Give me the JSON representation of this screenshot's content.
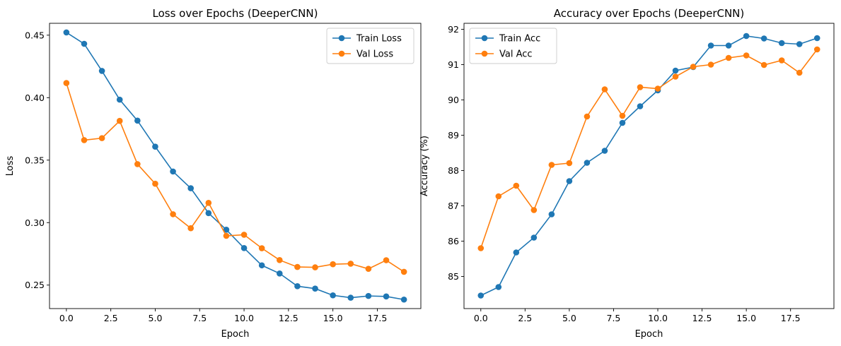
{
  "chart_data": [
    {
      "type": "line",
      "title": "Loss over Epochs (DeeperCNN)",
      "xlabel": "Epoch",
      "ylabel": "Loss",
      "xlim": [
        -0.95,
        19.95
      ],
      "ylim": [
        0.2312,
        0.4595
      ],
      "x_ticks": [
        0.0,
        2.5,
        5.0,
        7.5,
        10.0,
        12.5,
        15.0,
        17.5
      ],
      "x_tick_labels": [
        "0.0",
        "2.5",
        "5.0",
        "7.5",
        "10.0",
        "12.5",
        "15.0",
        "17.5"
      ],
      "y_ticks": [
        0.25,
        0.3,
        0.35,
        0.4,
        0.45
      ],
      "y_tick_labels": [
        "0.25",
        "0.30",
        "0.35",
        "0.40",
        "0.45"
      ],
      "grid": false,
      "legend": "top-right",
      "x": [
        0,
        1,
        2,
        3,
        4,
        5,
        6,
        7,
        8,
        9,
        10,
        11,
        12,
        13,
        14,
        15,
        16,
        17,
        18,
        19
      ],
      "series": [
        {
          "name": "Train Loss",
          "color": "#1f77b4",
          "values": [
            0.4522,
            0.4431,
            0.4214,
            0.3984,
            0.3816,
            0.3608,
            0.3409,
            0.3275,
            0.3076,
            0.2943,
            0.2796,
            0.2658,
            0.2593,
            0.2491,
            0.2472,
            0.2418,
            0.2399,
            0.2413,
            0.2409,
            0.2384
          ]
        },
        {
          "name": "Val Loss",
          "color": "#ff7f0e",
          "values": [
            0.4117,
            0.366,
            0.3676,
            0.3814,
            0.3468,
            0.3311,
            0.3067,
            0.2955,
            0.3158,
            0.2894,
            0.2903,
            0.2795,
            0.27,
            0.2645,
            0.2642,
            0.2667,
            0.2671,
            0.263,
            0.2699,
            0.2606
          ]
        }
      ]
    },
    {
      "type": "line",
      "title": "Accuracy over Epochs (DeeperCNN)",
      "xlabel": "Epoch",
      "ylabel": "Accuracy (%)",
      "xlim": [
        -0.95,
        19.95
      ],
      "ylim": [
        84.09,
        92.17
      ],
      "x_ticks": [
        0.0,
        2.5,
        5.0,
        7.5,
        10.0,
        12.5,
        15.0,
        17.5
      ],
      "x_tick_labels": [
        "0.0",
        "2.5",
        "5.0",
        "7.5",
        "10.0",
        "12.5",
        "15.0",
        "17.5"
      ],
      "y_ticks": [
        85,
        86,
        87,
        88,
        89,
        90,
        91,
        92
      ],
      "y_tick_labels": [
        "85",
        "86",
        "87",
        "88",
        "89",
        "90",
        "91",
        "92"
      ],
      "grid": false,
      "legend": "top-left",
      "x": [
        0,
        1,
        2,
        3,
        4,
        5,
        6,
        7,
        8,
        9,
        10,
        11,
        12,
        13,
        14,
        15,
        16,
        17,
        18,
        19
      ],
      "series": [
        {
          "name": "Train Acc",
          "color": "#1f77b4",
          "values": [
            84.46,
            84.7,
            85.68,
            86.1,
            86.76,
            87.7,
            88.22,
            88.56,
            89.35,
            89.82,
            90.27,
            90.83,
            90.93,
            91.54,
            91.54,
            91.81,
            91.74,
            91.61,
            91.58,
            91.75
          ]
        },
        {
          "name": "Val Acc",
          "color": "#ff7f0e",
          "values": [
            85.8,
            87.27,
            87.57,
            86.88,
            88.16,
            88.21,
            89.53,
            90.3,
            89.55,
            90.36,
            90.32,
            90.66,
            90.94,
            91.0,
            91.19,
            91.26,
            90.99,
            91.12,
            90.77,
            91.43
          ]
        }
      ]
    }
  ]
}
